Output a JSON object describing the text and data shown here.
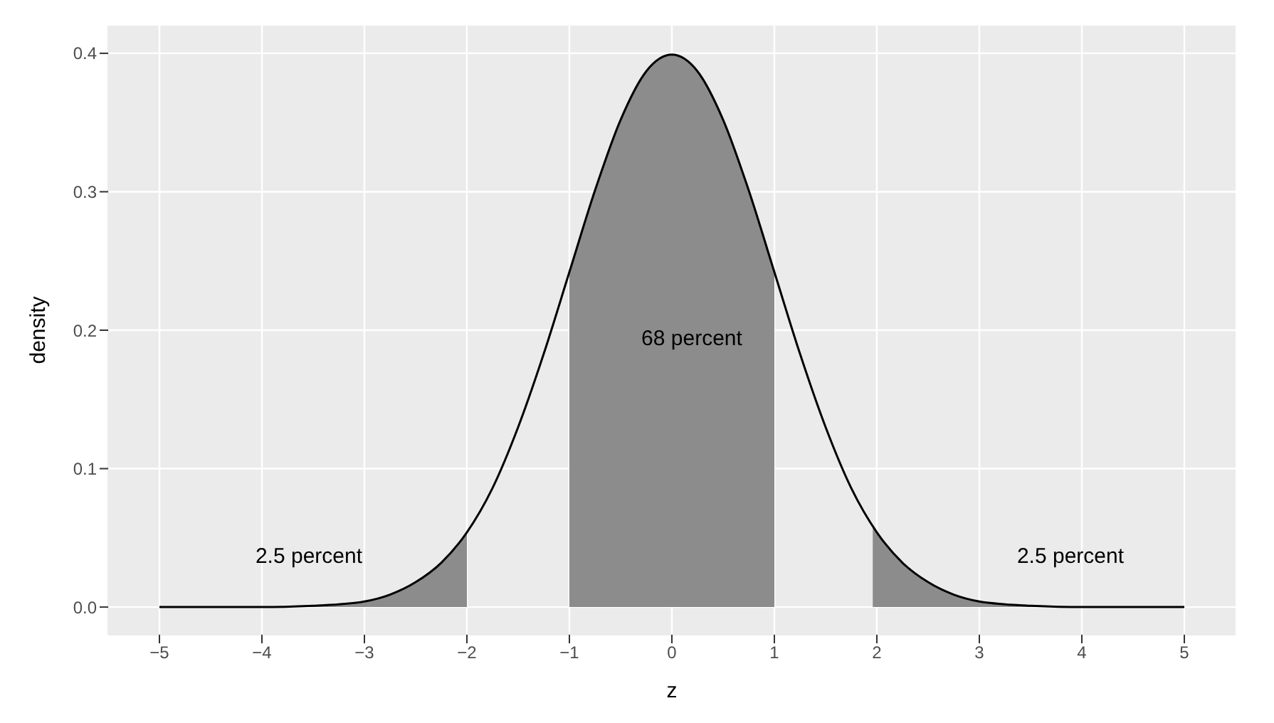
{
  "chart_data": {
    "type": "line",
    "xlabel": "z",
    "ylabel": "density",
    "xlim": [
      -5.5,
      5.5
    ],
    "xticks": [
      -5,
      -4,
      -3,
      -2,
      -1,
      0,
      1,
      2,
      3,
      4,
      5
    ],
    "ylim": [
      -0.02,
      0.42
    ],
    "yticks": [
      {
        "value": 0,
        "label": "0.0"
      },
      {
        "value": 0.1,
        "label": "0.1"
      },
      {
        "value": 0.2,
        "label": "0.2"
      },
      {
        "value": 0.3,
        "label": "0.3"
      },
      {
        "value": 0.4,
        "label": "0.4"
      }
    ],
    "grid": true,
    "marker": "none",
    "line_style": "solid",
    "series": [
      {
        "type": "area",
        "color": "#8c8c8c",
        "x": [
          -5,
          -4.5,
          -4,
          -3.5,
          -3.25,
          -3,
          -2.75,
          -2.5,
          -2.25,
          -2
        ],
        "values": [
          0,
          0,
          0,
          0.001,
          0.002,
          0.004,
          0.009,
          0.018,
          0.032,
          0.054
        ]
      },
      {
        "type": "area",
        "color": "#8c8c8c",
        "x": [
          -1,
          -0.75,
          -0.5,
          -0.25,
          0,
          0.25,
          0.5,
          0.75,
          1
        ],
        "values": [
          0.242,
          0.301,
          0.352,
          0.387,
          0.399,
          0.387,
          0.352,
          0.301,
          0.242
        ]
      },
      {
        "type": "area",
        "color": "#8c8c8c",
        "x": [
          1.96,
          2,
          2.25,
          2.5,
          2.75,
          3,
          3.25,
          3.5,
          4,
          4.5,
          5
        ],
        "values": [
          0.058,
          0.054,
          0.032,
          0.018,
          0.009,
          0.004,
          0.002,
          0.001,
          0,
          0,
          0
        ]
      },
      {
        "color": "#000000",
        "x": [
          -5,
          -4.5,
          -4,
          -3.5,
          -3.25,
          -3,
          -2.75,
          -2.5,
          -2.25,
          -2,
          -1.75,
          -1.5,
          -1.25,
          -1,
          -0.75,
          -0.5,
          -0.25,
          0,
          0.25,
          0.5,
          0.75,
          1,
          1.25,
          1.5,
          1.75,
          2,
          2.25,
          2.5,
          2.75,
          3,
          3.25,
          3.5,
          4,
          4.5,
          5
        ],
        "values": [
          0,
          0,
          0,
          0.001,
          0.002,
          0.004,
          0.009,
          0.018,
          0.032,
          0.054,
          0.086,
          0.13,
          0.183,
          0.242,
          0.301,
          0.352,
          0.387,
          0.399,
          0.387,
          0.352,
          0.301,
          0.242,
          0.183,
          0.13,
          0.086,
          0.054,
          0.032,
          0.018,
          0.009,
          0.004,
          0.002,
          0.001,
          0,
          0,
          0
        ]
      }
    ],
    "annotations": [
      "2.5 percent",
      "68 percent",
      "2.5 percent"
    ]
  }
}
